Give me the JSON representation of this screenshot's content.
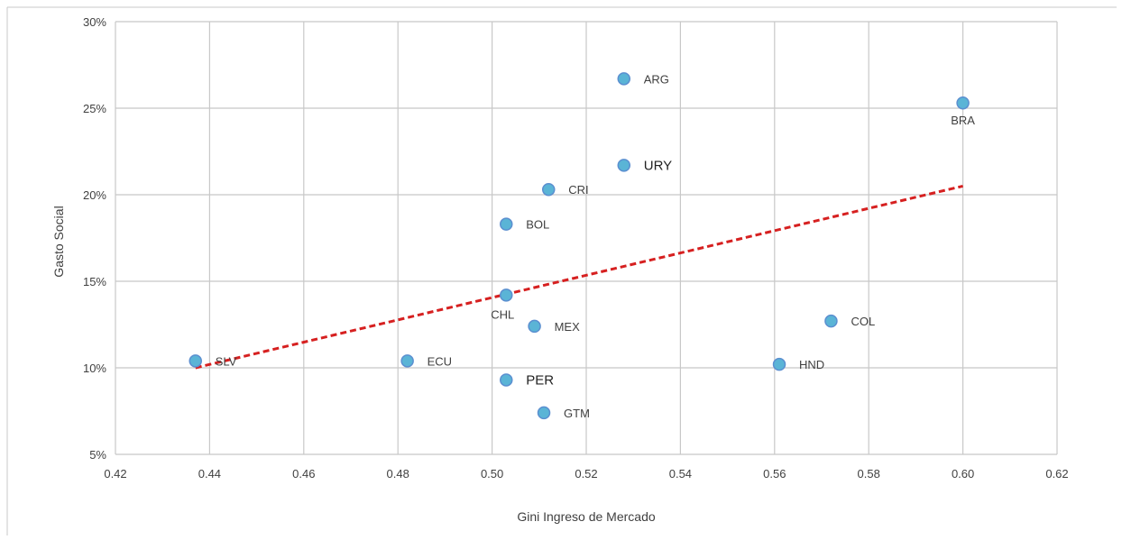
{
  "chart_data": {
    "type": "scatter",
    "title": "",
    "xlabel": "Gini Ingreso  de Mercado",
    "ylabel": "Gasto Social",
    "xlim": [
      0.42,
      0.62
    ],
    "ylim": [
      0.05,
      0.3
    ],
    "x_ticks": [
      0.42,
      0.44,
      0.46,
      0.48,
      0.5,
      0.52,
      0.54,
      0.56,
      0.58,
      0.6,
      0.62
    ],
    "y_ticks": [
      0.05,
      0.1,
      0.15,
      0.2,
      0.25,
      0.3
    ],
    "x_tick_labels": [
      "0.42",
      "0.44",
      "0.46",
      "0.48",
      "0.50",
      "0.52",
      "0.54",
      "0.56",
      "0.58",
      "0.60",
      "0.62"
    ],
    "y_tick_labels": [
      "5%",
      "10%",
      "15%",
      "20%",
      "25%",
      "30%"
    ],
    "grid": true,
    "points": [
      {
        "label": "ARG",
        "x": 0.528,
        "y": 0.267
      },
      {
        "label": "BRA",
        "x": 0.6,
        "y": 0.253
      },
      {
        "label": "URY",
        "x": 0.528,
        "y": 0.217
      },
      {
        "label": "CRI",
        "x": 0.512,
        "y": 0.203
      },
      {
        "label": "BOL",
        "x": 0.503,
        "y": 0.183
      },
      {
        "label": "CHL",
        "x": 0.503,
        "y": 0.142
      },
      {
        "label": "MEX",
        "x": 0.509,
        "y": 0.124
      },
      {
        "label": "COL",
        "x": 0.572,
        "y": 0.127
      },
      {
        "label": "SLV",
        "x": 0.437,
        "y": 0.104
      },
      {
        "label": "ECU",
        "x": 0.482,
        "y": 0.104
      },
      {
        "label": "HND",
        "x": 0.561,
        "y": 0.102
      },
      {
        "label": "PER",
        "x": 0.503,
        "y": 0.093
      },
      {
        "label": "GTM",
        "x": 0.511,
        "y": 0.074
      }
    ],
    "trendline": {
      "style": "dashed",
      "color": "#d62020",
      "x": [
        0.437,
        0.6
      ],
      "y": [
        0.1,
        0.205
      ]
    },
    "colors": {
      "point_fill": "#5ab4d6",
      "point_stroke": "#5b8fd0",
      "grid": "#c8c8c8",
      "trend": "#d62020"
    }
  }
}
